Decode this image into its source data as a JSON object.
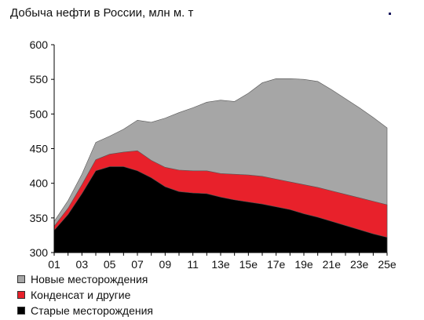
{
  "chart_data": {
    "type": "area",
    "stacked": true,
    "title": "Добыча нефти в России, млн м. т",
    "xlabel": "",
    "ylabel": "",
    "x_tick_labels": [
      "01",
      "03",
      "05",
      "07",
      "09",
      "11",
      "13e",
      "15e",
      "17e",
      "19e",
      "21e",
      "23e",
      "25e"
    ],
    "ylim": [
      300,
      600
    ],
    "y_ticks": [
      300,
      350,
      400,
      450,
      500,
      550,
      600
    ],
    "legend_position": "bottom",
    "grid": false,
    "x": [
      "01",
      "02",
      "03",
      "04",
      "05",
      "06",
      "07",
      "08",
      "09",
      "10",
      "11",
      "12",
      "13e",
      "14e",
      "15e",
      "16e",
      "17e",
      "18e",
      "19e",
      "20e",
      "21e",
      "22e",
      "23e",
      "24e",
      "25e"
    ],
    "series": [
      {
        "name": "Старые месторождения",
        "color": "#000000",
        "cumulative": [
          332,
          355,
          385,
          418,
          424,
          424,
          418,
          408,
          395,
          388,
          386,
          385,
          380,
          376,
          373,
          370,
          366,
          362,
          356,
          351,
          345,
          339,
          333,
          327,
          322
        ]
      },
      {
        "name": "Конденсат и другие",
        "color": "#e8212b",
        "cumulative": [
          338,
          364,
          398,
          434,
          442,
          445,
          447,
          433,
          423,
          419,
          418,
          418,
          414,
          413,
          412,
          410,
          406,
          402,
          398,
          394,
          389,
          384,
          379,
          374,
          369
        ]
      },
      {
        "name": "Новые месторождения",
        "color": "#a6a6a6",
        "cumulative": [
          345,
          375,
          413,
          459,
          468,
          478,
          491,
          488,
          494,
          502,
          509,
          517,
          520,
          518,
          530,
          545,
          551,
          551,
          550,
          547,
          535,
          522,
          509,
          495,
          480
        ]
      }
    ]
  },
  "legend": {
    "items": [
      {
        "label": "Новые месторождения",
        "color": "#a6a6a6"
      },
      {
        "label": "Конденсат и другие",
        "color": "#e8212b"
      },
      {
        "label": "Старые месторождения",
        "color": "#000000"
      }
    ]
  }
}
